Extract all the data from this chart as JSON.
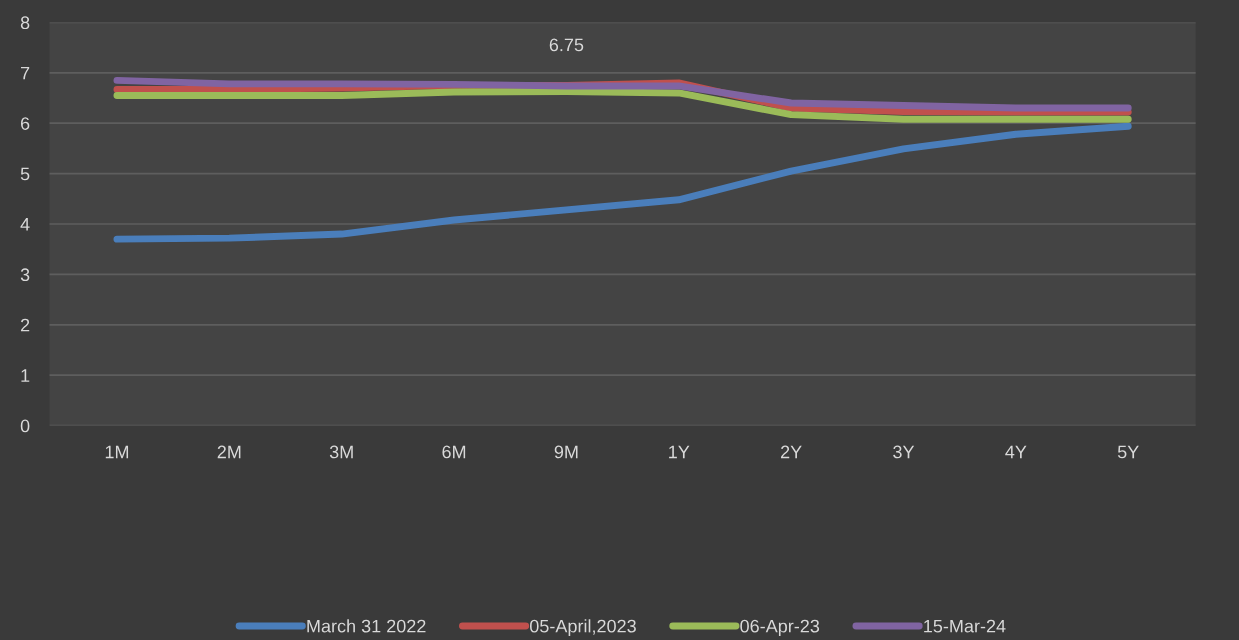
{
  "chart_data": {
    "type": "line",
    "categories": [
      "1M",
      "2M",
      "3M",
      "6M",
      "9M",
      "1Y",
      "2Y",
      "3Y",
      "4Y",
      "5Y"
    ],
    "series": [
      {
        "name": "March 31 2022",
        "color": "#4a7ebb",
        "values": [
          3.7,
          3.72,
          3.8,
          4.08,
          4.28,
          4.48,
          5.05,
          5.49,
          5.78,
          5.94
        ]
      },
      {
        "name": "05-April,2023",
        "color": "#c0504d",
        "values": [
          6.67,
          6.67,
          6.7,
          6.75,
          6.75,
          6.8,
          6.3,
          6.23,
          6.22,
          6.22
        ],
        "value_labels": [
          null,
          null,
          null,
          null,
          "6.75",
          null,
          null,
          null,
          null,
          null
        ]
      },
      {
        "name": "06-Apr-23",
        "color": "#9bbb59",
        "values": [
          6.55,
          6.55,
          6.55,
          6.62,
          6.63,
          6.6,
          6.17,
          6.08,
          6.08,
          6.08
        ]
      },
      {
        "name": "15-Mar-24",
        "color": "#8064a2",
        "values": [
          6.85,
          6.78,
          6.78,
          6.77,
          6.74,
          6.74,
          6.4,
          6.35,
          6.3,
          6.3
        ]
      }
    ],
    "ylim": [
      0,
      8
    ],
    "yticks": [
      0,
      1,
      2,
      3,
      4,
      5,
      6,
      7,
      8
    ],
    "grid": "y",
    "legend": "bottom",
    "marker": "none",
    "line_style": "solid"
  }
}
